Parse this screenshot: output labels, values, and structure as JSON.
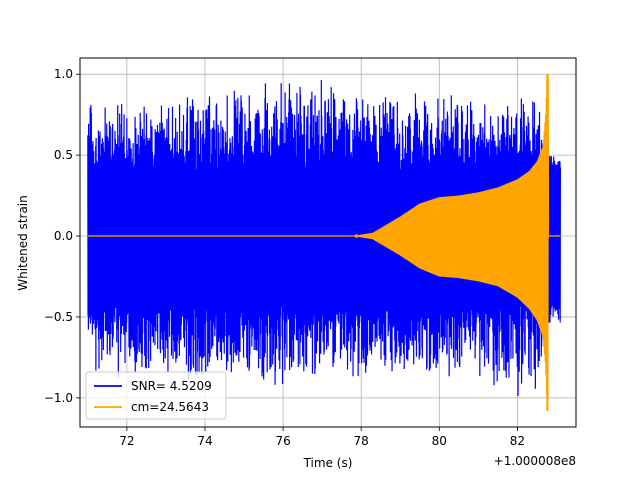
{
  "chart_data": {
    "type": "line",
    "title": "",
    "xlabel": "Time (s)",
    "ylabel": "Whitened strain",
    "x_offset_label": "+1.000008e8",
    "xlim": [
      70.8,
      83.5
    ],
    "ylim": [
      -1.18,
      1.1
    ],
    "grid": true,
    "legend_position": "lower left",
    "x_ticks": [
      72,
      74,
      76,
      78,
      80,
      82
    ],
    "x_tick_labels": [
      "72",
      "74",
      "76",
      "78",
      "80",
      "82"
    ],
    "y_ticks": [
      -1.0,
      -0.5,
      0.0,
      0.5,
      1.0
    ],
    "y_tick_labels": [
      "−1.0",
      "−0.5",
      "0.0",
      "0.5",
      "1.0"
    ],
    "series": [
      {
        "name": "SNR= 4.5209",
        "color": "#0000ff",
        "kind": "whitened noise + signal",
        "x_range": [
          71.0,
          83.1
        ],
        "envelope_x": [
          71.0,
          72.0,
          74.0,
          76.0,
          78.0,
          79.0,
          80.0,
          81.0,
          82.0,
          82.5,
          82.75,
          82.8,
          83.1
        ],
        "envelope_upper": [
          0.85,
          0.85,
          0.9,
          1.0,
          0.95,
          0.88,
          0.92,
          0.88,
          0.9,
          0.95,
          0.6,
          0.55,
          0.55
        ],
        "envelope_lower": [
          -0.85,
          -0.9,
          -0.9,
          -0.95,
          -0.9,
          -0.88,
          -0.9,
          -0.9,
          -1.04,
          -0.95,
          -0.7,
          -0.55,
          -0.55
        ],
        "dense_band": [
          0.5,
          -0.5
        ]
      },
      {
        "name": "cm=24.5643",
        "color": "#ffa500",
        "kind": "chirp template",
        "x_range": [
          71.0,
          83.1
        ],
        "envelope_x": [
          71.0,
          77.8,
          78.3,
          79.0,
          79.5,
          80.0,
          80.5,
          81.0,
          81.5,
          82.0,
          82.3,
          82.5,
          82.65,
          82.72,
          82.76,
          83.1
        ],
        "envelope_upper": [
          0.0,
          0.0,
          0.02,
          0.12,
          0.2,
          0.24,
          0.25,
          0.27,
          0.3,
          0.35,
          0.4,
          0.46,
          0.55,
          0.75,
          1.0,
          0.0
        ],
        "envelope_lower": [
          0.0,
          0.0,
          -0.02,
          -0.12,
          -0.2,
          -0.25,
          -0.26,
          -0.28,
          -0.31,
          -0.38,
          -0.45,
          -0.52,
          -0.62,
          -0.8,
          -1.08,
          0.0
        ],
        "merger_time": 82.76
      }
    ]
  }
}
